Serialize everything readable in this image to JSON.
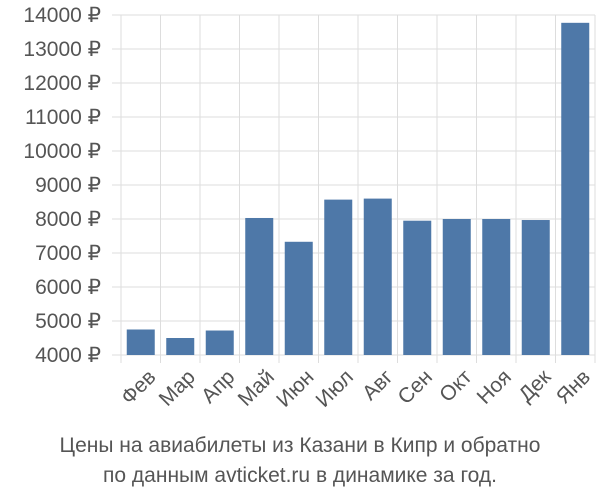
{
  "chart_data": {
    "type": "bar",
    "categories": [
      "Фев",
      "Мар",
      "Апр",
      "Май",
      "Июн",
      "Июл",
      "Авг",
      "Сен",
      "Окт",
      "Ноя",
      "Дек",
      "Янв"
    ],
    "values": [
      4750,
      4500,
      4720,
      8030,
      7330,
      8570,
      8600,
      7950,
      8000,
      8000,
      7970,
      13770
    ],
    "y_ticks": [
      "4000 ₽",
      "5000 ₽",
      "6000 ₽",
      "7000 ₽",
      "8000 ₽",
      "9000 ₽",
      "10000 ₽",
      "11000 ₽",
      "12000 ₽",
      "13000 ₽",
      "14000 ₽"
    ],
    "y_tick_values": [
      4000,
      5000,
      6000,
      7000,
      8000,
      9000,
      10000,
      11000,
      12000,
      13000,
      14000
    ],
    "ylim": [
      4000,
      14000
    ],
    "grid": true,
    "bar_color": "#4e78a8",
    "grid_color": "#dddddd",
    "text_color": "#555555"
  },
  "caption": {
    "line1": "Цены на авиабилеты из Казани в Кипр и обратно",
    "line2": "по данным avticket.ru в динамике за год."
  }
}
